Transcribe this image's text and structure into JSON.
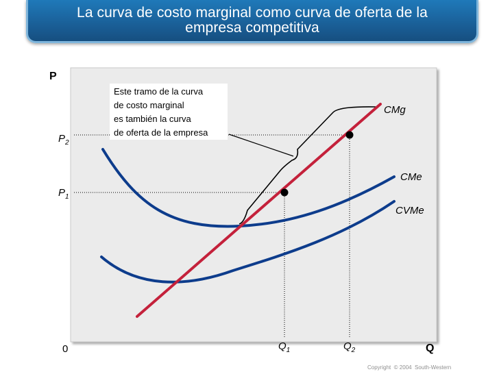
{
  "title": {
    "line1": "La curva de costo marginal como curva de oferta de la",
    "line2": "empresa competitiva"
  },
  "axes": {
    "y_label": "P",
    "x_label": "Q",
    "origin": "0",
    "p_ticks": [
      {
        "letter": "P",
        "sub": "2"
      },
      {
        "letter": "P",
        "sub": "1"
      }
    ],
    "q_ticks": [
      {
        "letter": "Q",
        "sub": "1"
      },
      {
        "letter": "Q",
        "sub": "2"
      }
    ]
  },
  "curves": {
    "cmg": "CMg",
    "cme": "CMe",
    "cvme": "CVMe"
  },
  "annotation": [
    "Este tramo de la curva",
    "de costo marginal",
    "es también la curva",
    "de oferta de la empresa"
  ],
  "copyright": "Copyright  © 2004  South-Western",
  "colors": {
    "cmg_line": "#c4213b",
    "cost_curves": "#0d3c8c",
    "title_bar": "#1a5f97",
    "plot_background": "#ebebeb"
  }
}
